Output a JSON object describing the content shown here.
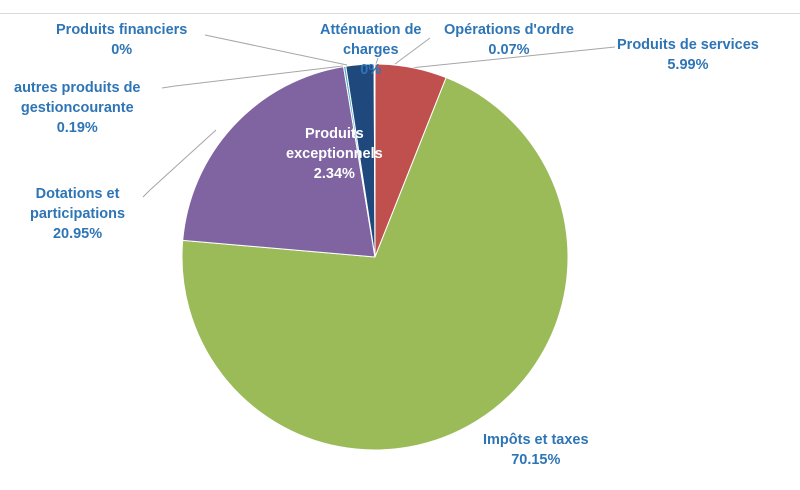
{
  "chart_data": {
    "type": "pie",
    "title": "",
    "slices": [
      {
        "name": "Produits de services",
        "label_lines": [
          "Produits de services"
        ],
        "value": 5.99,
        "pct_label": "5.99%",
        "color": "#c0504d"
      },
      {
        "name": "Impôts et taxes",
        "label_lines": [
          "Impôts et taxes"
        ],
        "value": 70.15,
        "pct_label": "70.15%",
        "color": "#9bbb59"
      },
      {
        "name": "Dotations et participations",
        "label_lines": [
          "Dotations et",
          "participations"
        ],
        "value": 20.95,
        "pct_label": "20.95%",
        "color": "#8064a2"
      },
      {
        "name": "autres produits de gestioncourante",
        "label_lines": [
          "autres produits de",
          "gestioncourante"
        ],
        "value": 0.19,
        "pct_label": "0.19%",
        "color": "#4bacc6"
      },
      {
        "name": "Produits financiers",
        "label_lines": [
          "Produits financiers"
        ],
        "value": 0.0,
        "pct_label": "0%",
        "color": "#f79646"
      },
      {
        "name": "Produits exceptionnels",
        "label_lines": [
          "Produits",
          "exceptionnels"
        ],
        "value": 2.34,
        "pct_label": "2.34%",
        "color": "#1f497d"
      },
      {
        "name": "Atténuation de charges",
        "label_lines": [
          "Atténuation de",
          "charges"
        ],
        "value": 0.0,
        "pct_label": "0%",
        "color": "#4f81bd"
      },
      {
        "name": "Opérations d'ordre",
        "label_lines": [
          "Opérations d'ordre"
        ],
        "value": 0.07,
        "pct_label": "0.07%",
        "color": "#f79646"
      }
    ],
    "start_angle_deg": 0,
    "direction": "clockwise",
    "legend": "none",
    "label_color": "#2e75b6"
  }
}
